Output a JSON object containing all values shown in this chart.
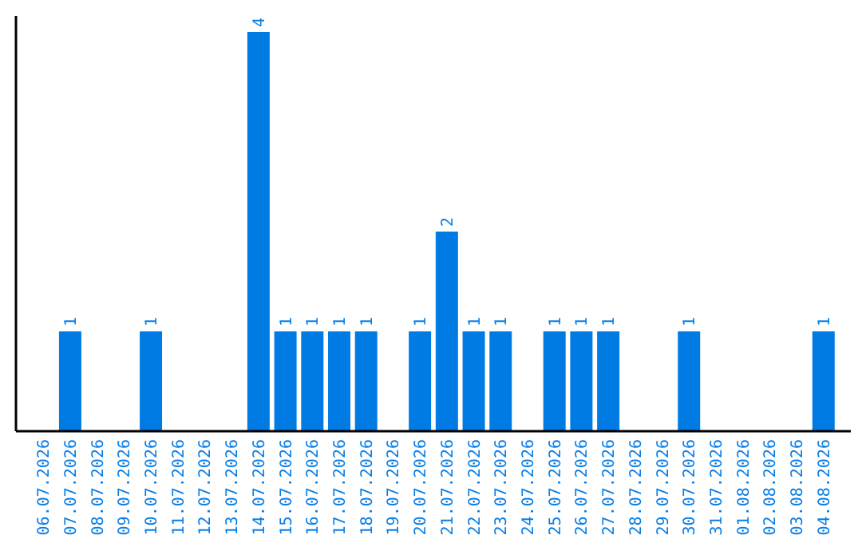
{
  "chart_data": {
    "type": "bar",
    "categories": [
      "06.07.2026",
      "07.07.2026",
      "08.07.2026",
      "09.07.2026",
      "10.07.2026",
      "11.07.2026",
      "12.07.2026",
      "13.07.2026",
      "14.07.2026",
      "15.07.2026",
      "16.07.2026",
      "17.07.2026",
      "18.07.2026",
      "19.07.2026",
      "20.07.2026",
      "21.07.2026",
      "22.07.2026",
      "23.07.2026",
      "24.07.2026",
      "25.07.2026",
      "26.07.2026",
      "27.07.2026",
      "28.07.2026",
      "29.07.2026",
      "30.07.2026",
      "31.07.2026",
      "01.08.2026",
      "02.08.2026",
      "03.08.2026",
      "04.08.2026"
    ],
    "values": [
      0,
      1,
      0,
      0,
      1,
      0,
      0,
      0,
      4,
      1,
      1,
      1,
      1,
      0,
      1,
      2,
      1,
      1,
      0,
      1,
      1,
      1,
      0,
      0,
      1,
      0,
      0,
      0,
      0,
      1
    ],
    "value_labels": [
      null,
      "1",
      null,
      null,
      "1",
      null,
      null,
      null,
      "4",
      "1",
      "1",
      "1",
      "1",
      null,
      "1",
      "2",
      "1",
      "1",
      null,
      "1",
      "1",
      "1",
      null,
      null,
      "1",
      null,
      null,
      null,
      null,
      "1"
    ],
    "color": "#007be3",
    "grid": false
  }
}
